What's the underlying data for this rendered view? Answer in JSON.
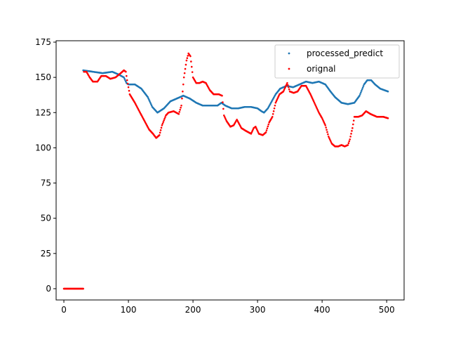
{
  "chart_data": {
    "type": "scatter",
    "title": "",
    "xlabel": "",
    "ylabel": "",
    "xlim": [
      -12,
      527
    ],
    "ylim": [
      -8,
      176
    ],
    "xticks": [
      0,
      100,
      200,
      300,
      400,
      500
    ],
    "yticks": [
      0,
      25,
      50,
      75,
      100,
      125,
      150,
      175
    ],
    "grid": false,
    "legend_position": "top-right",
    "series": [
      {
        "name": "processed_predict",
        "color": "#1f77b4",
        "anchors": [
          [
            30,
            155
          ],
          [
            45,
            154
          ],
          [
            60,
            153
          ],
          [
            75,
            154
          ],
          [
            85,
            152
          ],
          [
            93,
            150
          ],
          [
            97,
            146
          ],
          [
            100,
            145
          ],
          [
            110,
            145
          ],
          [
            120,
            142
          ],
          [
            130,
            136
          ],
          [
            137,
            129
          ],
          [
            145,
            125
          ],
          [
            155,
            128
          ],
          [
            165,
            133
          ],
          [
            175,
            135
          ],
          [
            185,
            137
          ],
          [
            195,
            135
          ],
          [
            205,
            132
          ],
          [
            215,
            130
          ],
          [
            238,
            130
          ],
          [
            244,
            132
          ],
          [
            250,
            130
          ],
          [
            260,
            128
          ],
          [
            270,
            128
          ],
          [
            280,
            129
          ],
          [
            290,
            129
          ],
          [
            300,
            128
          ],
          [
            306,
            126
          ],
          [
            310,
            125
          ],
          [
            316,
            128
          ],
          [
            322,
            133
          ],
          [
            328,
            138
          ],
          [
            335,
            142
          ],
          [
            345,
            144
          ],
          [
            355,
            143
          ],
          [
            365,
            145
          ],
          [
            375,
            147
          ],
          [
            385,
            146
          ],
          [
            395,
            147
          ],
          [
            405,
            145
          ],
          [
            413,
            140
          ],
          [
            420,
            136
          ],
          [
            430,
            132
          ],
          [
            440,
            131
          ],
          [
            450,
            132
          ],
          [
            458,
            137
          ],
          [
            465,
            145
          ],
          [
            470,
            148
          ],
          [
            476,
            148
          ],
          [
            482,
            145
          ],
          [
            490,
            142
          ],
          [
            502,
            140
          ]
        ]
      },
      {
        "name": "orignal",
        "color": "#ff0000",
        "anchors": [
          [
            0,
            0
          ],
          [
            30,
            0
          ],
          [
            31,
            154
          ],
          [
            35,
            154
          ],
          [
            40,
            150
          ],
          [
            45,
            147
          ],
          [
            52,
            147
          ],
          [
            58,
            151
          ],
          [
            65,
            151
          ],
          [
            72,
            149
          ],
          [
            80,
            150
          ],
          [
            88,
            153
          ],
          [
            93,
            155
          ],
          [
            96,
            154
          ],
          [
            98,
            148
          ],
          [
            102,
            138
          ],
          [
            110,
            132
          ],
          [
            118,
            125
          ],
          [
            125,
            119
          ],
          [
            132,
            113
          ],
          [
            138,
            110
          ],
          [
            143,
            107
          ],
          [
            148,
            109
          ],
          [
            152,
            116
          ],
          [
            158,
            123
          ],
          [
            162,
            125
          ],
          [
            170,
            126
          ],
          [
            178,
            124
          ],
          [
            182,
            130
          ],
          [
            186,
            150
          ],
          [
            190,
            162
          ],
          [
            193,
            167
          ],
          [
            196,
            165
          ],
          [
            200,
            150
          ],
          [
            205,
            146
          ],
          [
            210,
            146
          ],
          [
            215,
            147
          ],
          [
            220,
            146
          ],
          [
            226,
            141
          ],
          [
            232,
            138
          ],
          [
            240,
            138
          ],
          [
            245,
            137
          ],
          [
            248,
            123
          ],
          [
            252,
            119
          ],
          [
            258,
            115
          ],
          [
            263,
            116
          ],
          [
            268,
            120
          ],
          [
            275,
            114
          ],
          [
            282,
            112
          ],
          [
            290,
            110
          ],
          [
            294,
            114
          ],
          [
            297,
            115
          ],
          [
            302,
            110
          ],
          [
            308,
            109
          ],
          [
            313,
            111
          ],
          [
            318,
            118
          ],
          [
            323,
            122
          ],
          [
            328,
            132
          ],
          [
            334,
            138
          ],
          [
            340,
            140
          ],
          [
            346,
            146
          ],
          [
            350,
            140
          ],
          [
            356,
            139
          ],
          [
            362,
            140
          ],
          [
            368,
            144
          ],
          [
            375,
            144
          ],
          [
            382,
            138
          ],
          [
            390,
            130
          ],
          [
            395,
            125
          ],
          [
            400,
            121
          ],
          [
            405,
            116
          ],
          [
            410,
            108
          ],
          [
            415,
            103
          ],
          [
            420,
            101
          ],
          [
            425,
            101
          ],
          [
            430,
            102
          ],
          [
            435,
            101
          ],
          [
            440,
            102
          ],
          [
            443,
            106
          ],
          [
            447,
            114
          ],
          [
            450,
            122
          ],
          [
            456,
            122
          ],
          [
            462,
            123
          ],
          [
            468,
            126
          ],
          [
            475,
            124
          ],
          [
            485,
            122
          ],
          [
            495,
            122
          ],
          [
            502,
            121
          ]
        ]
      }
    ]
  }
}
